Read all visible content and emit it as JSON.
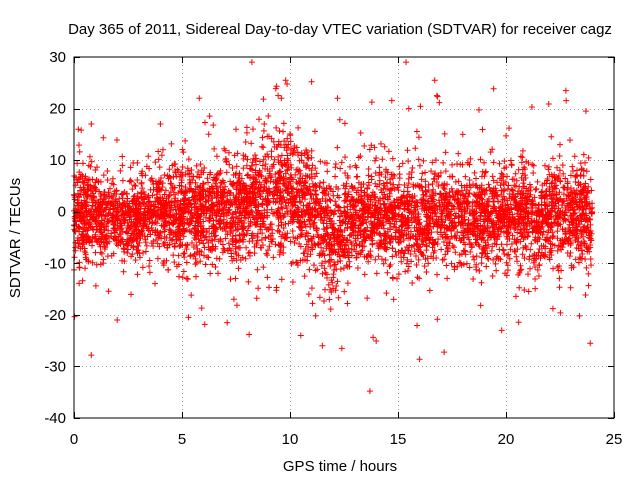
{
  "chart_data": {
    "type": "scatter",
    "title": "Day 365 of 2011, Sidereal Day-to-day VTEC variation (SDTVAR) for receiver cagz",
    "xlabel": "GPS time / hours",
    "ylabel": "SDTVAR / TECUs",
    "xlim": [
      0,
      25
    ],
    "ylim": [
      -40,
      30
    ],
    "x_ticks": [
      0,
      5,
      10,
      15,
      20,
      25
    ],
    "y_ticks": [
      -40,
      -30,
      -20,
      -10,
      0,
      10,
      20,
      30
    ],
    "x_tick_labels": [
      "0",
      "5",
      "10",
      "15",
      "20",
      "25"
    ],
    "y_tick_labels": [
      "-40",
      "-30",
      "-20",
      "-10",
      "0",
      "10",
      "20",
      "30"
    ],
    "grid": true,
    "marker": "+",
    "color": "#ff0000",
    "series": [
      {
        "name": "SDTVAR",
        "x_range_hours": [
          0,
          24
        ],
        "core_band_tecu": [
          -5,
          5
        ],
        "envelope_hours": [
          0,
          1,
          2,
          3,
          4,
          5,
          6,
          7,
          8,
          9,
          10,
          11,
          12,
          13,
          14,
          15,
          16,
          17,
          18,
          19,
          20,
          21,
          22,
          23,
          24
        ],
        "envelope_center_tecu": [
          0,
          -1,
          -1,
          -1,
          0,
          0,
          0,
          0,
          1,
          3,
          3,
          0,
          -4,
          -2,
          -1,
          -1,
          -1,
          -1,
          -1,
          -1,
          -1,
          -1,
          -1,
          -1,
          -1
        ],
        "envelope_spread_tecu": [
          5,
          4,
          4,
          4,
          5,
          5,
          5,
          5,
          5,
          6,
          6,
          6,
          6,
          5,
          5,
          5,
          5,
          5,
          5,
          5,
          5,
          5,
          5,
          5,
          5
        ],
        "notable_points": [
          {
            "x": 0.8,
            "y": -27.8
          },
          {
            "x": 0.8,
            "y": 17.0
          },
          {
            "x": 5.8,
            "y": 22.0
          },
          {
            "x": 9.8,
            "y": 25.5
          },
          {
            "x": 11.0,
            "y": 25.2
          },
          {
            "x": 12.2,
            "y": 22.0
          },
          {
            "x": 13.7,
            "y": -34.8
          },
          {
            "x": 16.7,
            "y": 25.5
          },
          {
            "x": 16.8,
            "y": 22.5
          },
          {
            "x": 16.0,
            "y": -28.6
          },
          {
            "x": 21.2,
            "y": 20.3
          },
          {
            "x": 23.7,
            "y": 19.5
          },
          {
            "x": 23.9,
            "y": -25.5
          },
          {
            "x": 11.5,
            "y": -26.0
          },
          {
            "x": 12.4,
            "y": -26.5
          },
          {
            "x": 5.3,
            "y": -20.5
          },
          {
            "x": 2.0,
            "y": -21.0
          },
          {
            "x": 15.5,
            "y": 20.0
          },
          {
            "x": 19.8,
            "y": -23.0
          },
          {
            "x": 10.5,
            "y": -24.0
          },
          {
            "x": 9.6,
            "y": 22.0
          },
          {
            "x": 0.2,
            "y": 16.0
          },
          {
            "x": 18.0,
            "y": 15.0
          },
          {
            "x": 4.0,
            "y": 17.0
          },
          {
            "x": 7.5,
            "y": 16.0
          },
          {
            "x": 22.5,
            "y": 13.0
          },
          {
            "x": 14.8,
            "y": -17.0
          }
        ]
      }
    ]
  }
}
